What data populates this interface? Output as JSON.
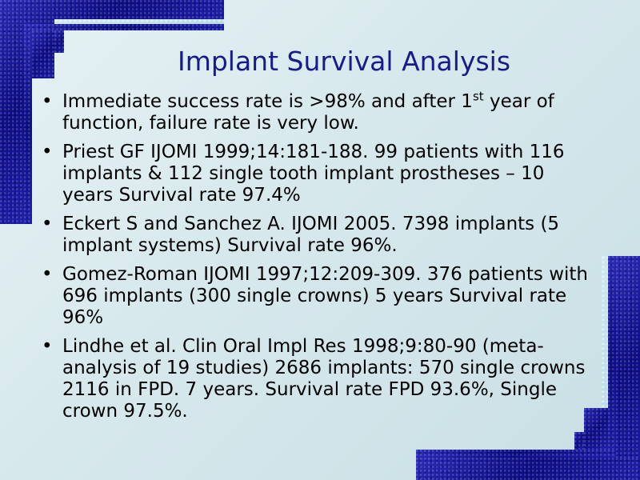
{
  "slide": {
    "title": "Implant Survival Analysis",
    "bullet_glyph": "•",
    "bullets": [
      {
        "pre": "Immediate success rate is >98% and after 1",
        "sup": "st",
        "post": " year of function, failure rate is very low."
      },
      {
        "text": "Priest GF IJOMI 1999;14:181-188. 99 patients with 116 implants & 112 single tooth implant prostheses – 10 years Survival rate 97.4%"
      },
      {
        "text": "Eckert S and Sanchez A. IJOMI 2005. 7398 implants (5 implant systems) Survival rate 96%."
      },
      {
        "text": "Gomez-Roman IJOMI 1997;12:209-309. 376 patients with 696 implants (300 single crowns) 5 years Survival rate 96%"
      },
      {
        "text": "Lindhe et al. Clin Oral Impl Res 1998;9:80-90 (meta-analysis of 19 studies) 2686 implants: 570 single crowns 2116 in FPD. 7 years. Survival rate FPD 93.6%, Single crown 97.5%."
      }
    ]
  },
  "colors": {
    "title": "#1a1a88",
    "frame": "#1a1aa0",
    "background": "#dbecef"
  }
}
